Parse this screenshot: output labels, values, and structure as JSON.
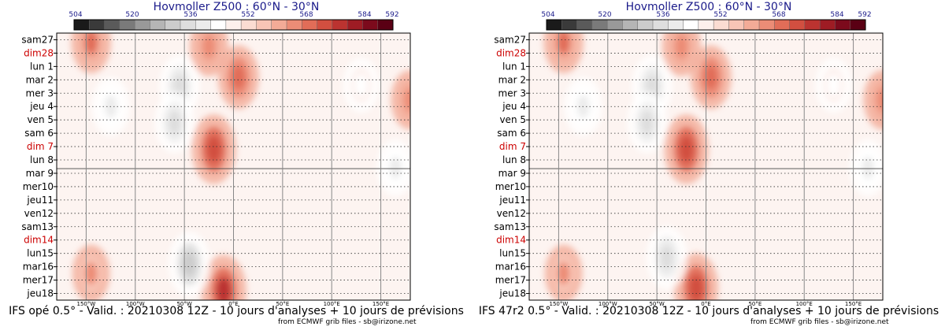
{
  "colorbar": {
    "labels": [
      "504",
      "520",
      "536",
      "552",
      "568",
      "584",
      "592"
    ],
    "colors": [
      "#1a1a1a",
      "#3a3a3a",
      "#5a5a5a",
      "#7a7a7a",
      "#999999",
      "#b5b5b5",
      "#cccccc",
      "#dedede",
      "#ececec",
      "#ffffff",
      "#fdf0ec",
      "#fbdcd2",
      "#f8c5b6",
      "#f3ab97",
      "#ec8c76",
      "#e16d58",
      "#d24f40",
      "#bb3330",
      "#9e1c24",
      "#7c0a1c",
      "#5a0014"
    ]
  },
  "days": [
    {
      "label": "sam27",
      "sunday": false
    },
    {
      "label": "dim28",
      "sunday": true
    },
    {
      "label": "lun 1",
      "sunday": false
    },
    {
      "label": "mar 2",
      "sunday": false
    },
    {
      "label": "mer 3",
      "sunday": false
    },
    {
      "label": "jeu 4",
      "sunday": false
    },
    {
      "label": "ven 5",
      "sunday": false
    },
    {
      "label": "sam 6",
      "sunday": false
    },
    {
      "label": "dim 7",
      "sunday": true
    },
    {
      "label": "lun 8",
      "sunday": false
    },
    {
      "label": "mar 9",
      "sunday": false
    },
    {
      "label": "mer10",
      "sunday": false
    },
    {
      "label": "jeu11",
      "sunday": false
    },
    {
      "label": "ven12",
      "sunday": false
    },
    {
      "label": "sam13",
      "sunday": false
    },
    {
      "label": "dim14",
      "sunday": true
    },
    {
      "label": "lun15",
      "sunday": false
    },
    {
      "label": "mar16",
      "sunday": false
    },
    {
      "label": "mer17",
      "sunday": false
    },
    {
      "label": "jeu18",
      "sunday": false
    }
  ],
  "longitudes": [
    "150°W",
    "100°W",
    "50°W",
    "0°E",
    "50°E",
    "100°E",
    "150°E"
  ],
  "panels": [
    {
      "title": "Hovmoller Z500 : 60°N - 30°N",
      "footer": "IFS opé 0.5° - Valid. : 20210308 12Z - 10 jours d'analyses + 10 jours de prévisions",
      "credit": "from ECMWF grib files - sb@irizone.net"
    },
    {
      "title": "Hovmoller Z500 : 60°N - 30°N",
      "footer": "IFS 47r2 0.5° - Valid. : 20210308 12Z - 10 jours d'analyses + 10 jours de prévisions",
      "credit": "from ECMWF grib files - sb@irizone.net"
    }
  ],
  "chart_data": [
    {
      "type": "heatmap",
      "title": "Hovmoller Z500 : 60°N - 30°N",
      "x_ticks": [
        "150°W",
        "100°W",
        "50°W",
        "0°E",
        "50°E",
        "100°E",
        "150°E"
      ],
      "y_ticks": [
        "sam27",
        "dim28",
        "lun 1",
        "mar 2",
        "mer 3",
        "jeu 4",
        "ven 5",
        "sam 6",
        "dim 7",
        "lun 8",
        "mar 9",
        "mer10",
        "jeu11",
        "ven12",
        "sam13",
        "dim14",
        "lun15",
        "mar16",
        "mer17",
        "jeu18"
      ],
      "colorbar_ticks": [
        504,
        520,
        536,
        552,
        568,
        584,
        592
      ],
      "analysis_end": "mar 9",
      "features": [
        {
          "lon": -20,
          "day": 8.2,
          "value": 576
        },
        {
          "lon": 5,
          "day": 2.8,
          "value": 570
        },
        {
          "lon": -25,
          "day": 0.5,
          "value": 566
        },
        {
          "lon": -145,
          "day": 0.2,
          "value": 568
        },
        {
          "lon": -10,
          "day": 18.8,
          "value": 578
        },
        {
          "lon": -145,
          "day": 17.5,
          "value": 564
        },
        {
          "lon": -55,
          "day": 3.5,
          "value": 534
        },
        {
          "lon": -60,
          "day": 6.2,
          "value": 536
        },
        {
          "lon": -45,
          "day": 16.8,
          "value": 532
        },
        {
          "lon": -125,
          "day": 5.0,
          "value": 538
        },
        {
          "lon": 165,
          "day": 9.6,
          "value": 540
        },
        {
          "lon": 130,
          "day": 3.4,
          "value": 542
        },
        {
          "lon": 180,
          "day": 4.5,
          "value": 566
        }
      ]
    },
    {
      "type": "heatmap",
      "title": "Hovmoller Z500 : 60°N - 30°N",
      "x_ticks": [
        "150°W",
        "100°W",
        "50°W",
        "0°E",
        "50°E",
        "100°E",
        "150°E"
      ],
      "y_ticks": [
        "sam27",
        "dim28",
        "lun 1",
        "mar 2",
        "mer 3",
        "jeu 4",
        "ven 5",
        "sam 6",
        "dim 7",
        "lun 8",
        "mar 9",
        "mer10",
        "jeu11",
        "ven12",
        "sam13",
        "dim14",
        "lun15",
        "mar16",
        "mer17",
        "jeu18"
      ],
      "colorbar_ticks": [
        504,
        520,
        536,
        552,
        568,
        584,
        592
      ],
      "analysis_end": "mar 9",
      "features": [
        {
          "lon": -20,
          "day": 8.2,
          "value": 576
        },
        {
          "lon": 5,
          "day": 2.8,
          "value": 570
        },
        {
          "lon": -25,
          "day": 0.5,
          "value": 566
        },
        {
          "lon": -145,
          "day": 0.2,
          "value": 568
        },
        {
          "lon": -10,
          "day": 18.6,
          "value": 576
        },
        {
          "lon": -145,
          "day": 17.5,
          "value": 564
        },
        {
          "lon": -55,
          "day": 3.5,
          "value": 534
        },
        {
          "lon": -60,
          "day": 6.2,
          "value": 536
        },
        {
          "lon": -40,
          "day": 16.3,
          "value": 534
        },
        {
          "lon": -125,
          "day": 5.0,
          "value": 538
        },
        {
          "lon": 165,
          "day": 9.6,
          "value": 540
        },
        {
          "lon": 130,
          "day": 3.4,
          "value": 542
        },
        {
          "lon": 180,
          "day": 4.5,
          "value": 566
        }
      ]
    }
  ]
}
